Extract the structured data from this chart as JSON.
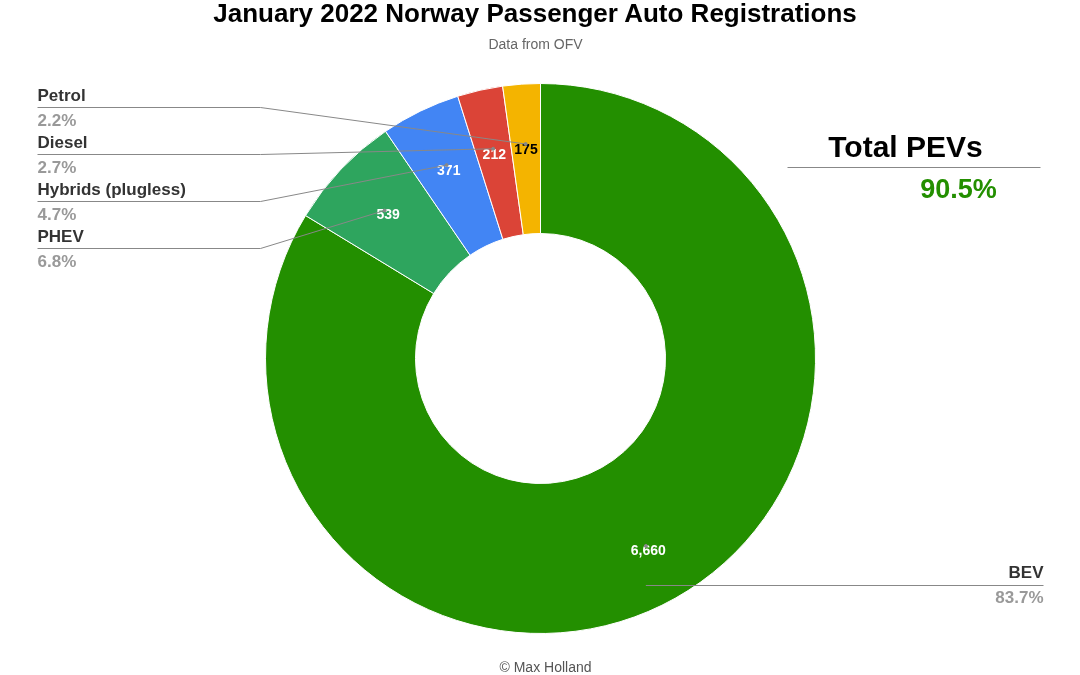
{
  "chart_data": {
    "type": "donut",
    "title": "January 2022 Norway Passenger Auto Registrations",
    "subtitle": "Data from OFV",
    "categories": [
      "BEV",
      "PHEV",
      "Hybrids (plugless)",
      "Diesel",
      "Petrol"
    ],
    "values": [
      6660,
      539,
      371,
      212,
      175
    ],
    "value_labels": [
      "6,660",
      "539",
      "371",
      "212",
      "175"
    ],
    "colors": [
      "#238f00",
      "#2ea55e",
      "#4285f4",
      "#db4437",
      "#f4b400"
    ],
    "annotations": [
      "83.7%",
      "6.8%",
      "4.7%",
      "2.7%",
      "2.2%",
      "Total PEVs",
      "90.5%",
      "© Max Holland"
    ]
  }
}
